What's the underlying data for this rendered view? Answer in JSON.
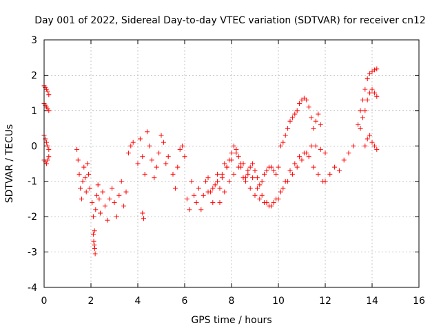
{
  "chart_data": {
    "type": "scatter",
    "title": "Day 001 of 2022, Sidereal Day-to-day VTEC variation (SDTVAR) for receiver cn12",
    "xlabel": "GPS time / hours",
    "ylabel": "SDTVAR / TECUs",
    "xlim": [
      0,
      16
    ],
    "ylim": [
      -4,
      3
    ],
    "xticks": [
      "0",
      "2",
      "4",
      "6",
      "8",
      "10",
      "12",
      "14",
      "16"
    ],
    "yticks": [
      "-4",
      "-3",
      "-2",
      "-1",
      "0",
      "1",
      "2",
      "3"
    ],
    "grid": true,
    "marker": "+",
    "color": "#ff0000",
    "series": [
      {
        "x": [
          0.0,
          0.05,
          0.1,
          0.15,
          0.2,
          0.0,
          0.05,
          0.1,
          0.15,
          0.2,
          0.0,
          0.05,
          0.1,
          0.15,
          0.2,
          0.0,
          0.05,
          0.1,
          0.15,
          0.2,
          1.4,
          1.45,
          1.5,
          1.55,
          1.6,
          1.65,
          1.7,
          1.75,
          1.8,
          1.85,
          1.9,
          1.95,
          2.05,
          2.1,
          2.15,
          2.2,
          2.25,
          2.3,
          2.35,
          2.4,
          2.5,
          2.6,
          2.7,
          2.8,
          2.9,
          3.0,
          3.1,
          3.2,
          3.3,
          3.4,
          3.5,
          3.6,
          3.7,
          3.8,
          4.0,
          4.1,
          4.2,
          4.3,
          4.4,
          4.5,
          4.6,
          4.7,
          4.8,
          4.9,
          5.0,
          5.1,
          5.2,
          5.3,
          5.5,
          5.6,
          5.7,
          5.8,
          5.9,
          6.0,
          6.1,
          6.2,
          6.3,
          6.4,
          6.5,
          6.6,
          6.7,
          6.8,
          6.9,
          7.0,
          7.1,
          7.2,
          7.3,
          7.4,
          7.5,
          7.6,
          7.7,
          7.8,
          7.9,
          8.0,
          8.1,
          8.2,
          8.3,
          8.4,
          8.5,
          8.6,
          8.7,
          8.8,
          8.9,
          9.0,
          9.1,
          9.2,
          9.3,
          9.4,
          9.5,
          9.6,
          9.7,
          9.8,
          9.9,
          10.0,
          10.1,
          10.2,
          10.3,
          10.4,
          10.5,
          10.6,
          10.7,
          10.8,
          10.9,
          11.0,
          11.1,
          11.2,
          11.3,
          11.4,
          11.5,
          11.6,
          11.7,
          11.8,
          12.0,
          12.2,
          12.4,
          12.6,
          12.8,
          13.0,
          13.2,
          13.4,
          13.5,
          13.6,
          13.7,
          13.8,
          13.9,
          14.0,
          14.1,
          14.2,
          13.5,
          13.6,
          13.7,
          13.8,
          13.9,
          14.0,
          14.1,
          14.2,
          13.7,
          13.8,
          13.9,
          14.0,
          14.1,
          14.2,
          7.0,
          7.2,
          7.4,
          7.6,
          7.8,
          8.0,
          8.2,
          8.4,
          8.6,
          8.8,
          9.0,
          9.2,
          9.4,
          9.6,
          9.8,
          10.0,
          10.2,
          10.4,
          10.6,
          10.8,
          11.0,
          11.2,
          11.4,
          11.6,
          11.8,
          12.0,
          7.5,
          7.7,
          7.9,
          8.1,
          8.3,
          8.5,
          8.7,
          8.9,
          9.1,
          9.3,
          9.5,
          9.7,
          9.9,
          10.1,
          10.3,
          10.5,
          10.7,
          10.9,
          11.1,
          11.3,
          11.5,
          11.7,
          11.9,
          2.1,
          2.12,
          2.14,
          2.16,
          2.18,
          4.2,
          4.25
        ],
        "y": [
          1.7,
          1.65,
          1.6,
          1.55,
          1.45,
          1.2,
          1.15,
          1.1,
          1.05,
          1.0,
          0.3,
          0.2,
          0.1,
          0.0,
          -0.1,
          -0.4,
          -0.45,
          -0.5,
          -0.4,
          -0.3,
          -0.1,
          -0.4,
          -0.8,
          -1.2,
          -1.5,
          -1.0,
          -0.6,
          -0.9,
          -1.3,
          -0.5,
          -0.8,
          -1.2,
          -1.6,
          -2.0,
          -2.4,
          -1.8,
          -1.4,
          -1.1,
          -1.5,
          -1.9,
          -1.3,
          -1.7,
          -2.1,
          -1.5,
          -1.2,
          -1.6,
          -2.0,
          -1.4,
          -1.0,
          -1.7,
          -1.3,
          -0.2,
          0.0,
          0.1,
          -0.5,
          0.2,
          -0.3,
          -0.8,
          0.4,
          0.0,
          -0.4,
          -0.9,
          -0.6,
          -0.2,
          0.3,
          0.1,
          -0.5,
          -0.3,
          -0.8,
          -1.2,
          -0.6,
          -0.1,
          0.0,
          -0.3,
          -1.5,
          -1.8,
          -1.0,
          -1.4,
          -1.6,
          -1.2,
          -1.8,
          -1.4,
          -1.0,
          -0.9,
          -1.3,
          -1.6,
          -1.1,
          -0.8,
          -1.2,
          -0.9,
          -0.5,
          -0.6,
          -0.4,
          -0.2,
          0.0,
          -0.1,
          -0.3,
          -0.6,
          -0.9,
          -1.0,
          -0.8,
          -0.6,
          -0.5,
          -0.7,
          -0.9,
          -1.1,
          -1.0,
          -0.8,
          -0.7,
          -0.6,
          -0.6,
          -0.7,
          -0.8,
          -0.6,
          0.0,
          0.1,
          0.3,
          0.5,
          0.7,
          0.8,
          0.9,
          1.0,
          1.2,
          1.3,
          1.35,
          1.3,
          1.1,
          0.8,
          0.5,
          0.7,
          0.9,
          0.6,
          -1.0,
          -0.8,
          -0.6,
          -0.7,
          -0.4,
          -0.2,
          0.0,
          0.6,
          1.0,
          1.3,
          1.6,
          1.9,
          2.05,
          2.1,
          2.15,
          2.18,
          0.5,
          0.8,
          1.0,
          1.3,
          1.5,
          1.6,
          1.5,
          1.4,
          0.0,
          0.2,
          0.3,
          0.1,
          0.0,
          -0.1,
          -1.3,
          -1.2,
          -1.0,
          -0.8,
          -0.6,
          -0.4,
          -0.2,
          -0.5,
          -0.9,
          -1.2,
          -1.4,
          -1.5,
          -1.6,
          -1.7,
          -1.6,
          -1.5,
          -1.2,
          -1.0,
          -0.8,
          -0.6,
          -0.4,
          -0.2,
          0.0,
          0.0,
          -0.1,
          -0.2,
          -1.6,
          -1.3,
          -1.0,
          -0.8,
          -0.6,
          -0.5,
          -0.7,
          -0.9,
          -1.2,
          -1.4,
          -1.6,
          -1.7,
          -1.5,
          -1.3,
          -1.0,
          -0.7,
          -0.5,
          -0.3,
          -0.2,
          -0.3,
          -0.6,
          -0.8,
          -1.0,
          -2.5,
          -2.7,
          -2.8,
          -2.9,
          -3.05,
          -1.9,
          -2.05
        ]
      }
    ]
  }
}
